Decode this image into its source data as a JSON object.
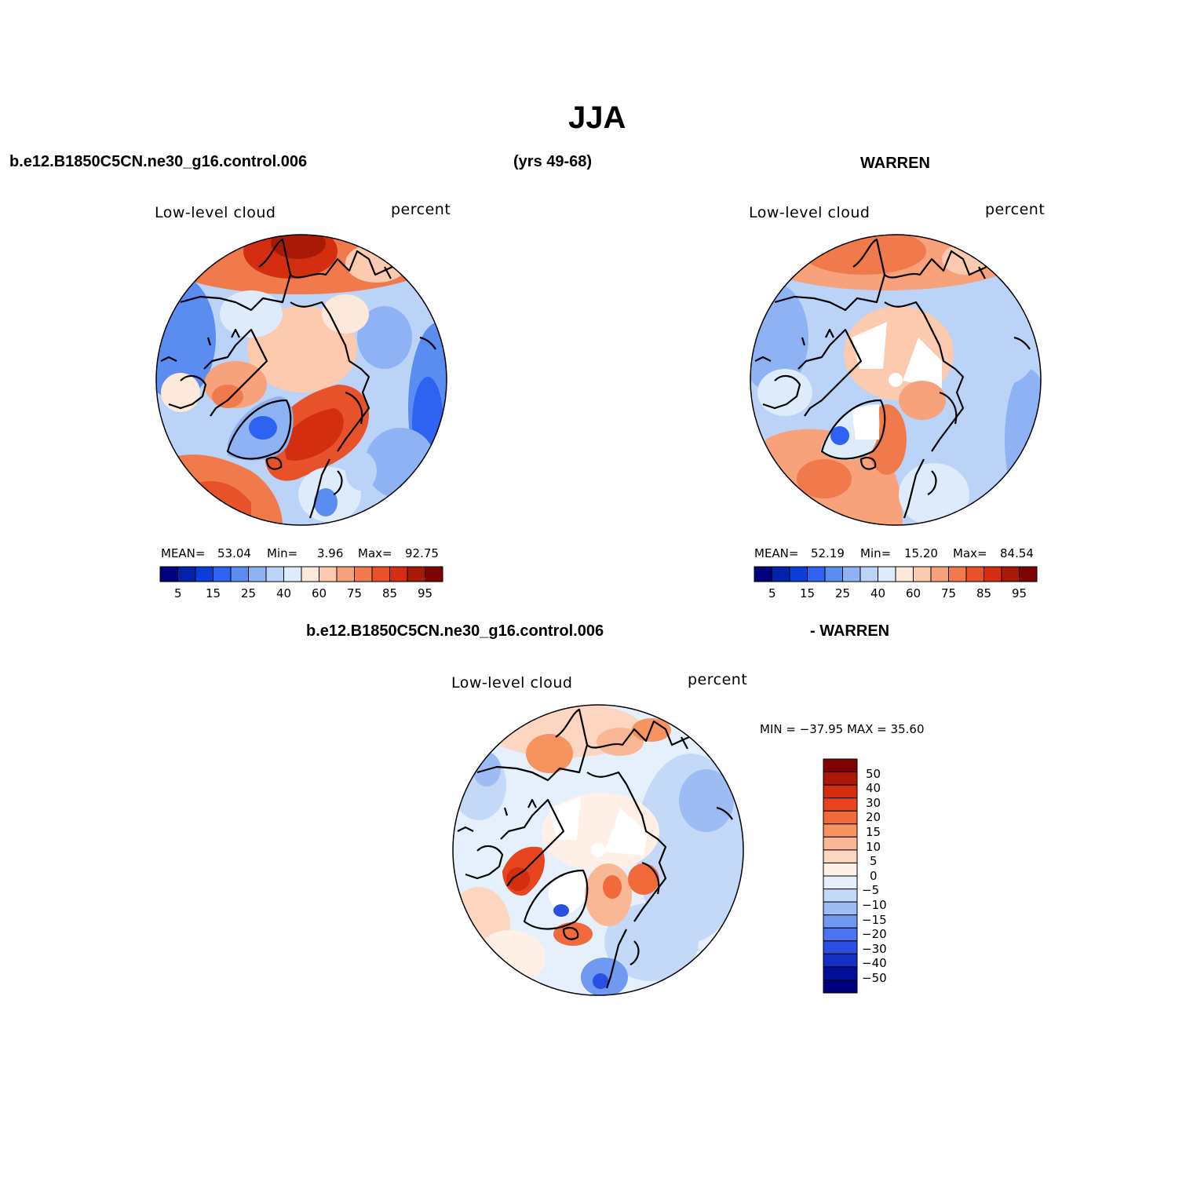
{
  "header": {
    "season": "JJA",
    "case_name": "b.e12.B1850C5CN.ne30_g16.control.006",
    "years": "(yrs 49-68)",
    "obs_name": "WARREN"
  },
  "panels": [
    {
      "id": "model",
      "var_label": "Low-level cloud",
      "units_label": "percent",
      "stats": {
        "mean_label": "MEAN=",
        "mean": "53.04",
        "min_label": "Min=",
        "min": "3.96",
        "max_label": "Max=",
        "max": "92.75"
      }
    },
    {
      "id": "obs",
      "var_label": "Low-level cloud",
      "units_label": "percent",
      "stats": {
        "mean_label": "MEAN=",
        "mean": "52.19",
        "min_label": "Min=",
        "min": "15.20",
        "max_label": "Max=",
        "max": "84.54"
      }
    }
  ],
  "colorbar": {
    "colors": [
      "#00007f",
      "#0022a8",
      "#0a3ed6",
      "#2e62f0",
      "#5b8cf0",
      "#8fb2f5",
      "#bcd3f8",
      "#ddebfb",
      "#fde9dc",
      "#fbcaaf",
      "#f7a27a",
      "#f17a4d",
      "#e8522a",
      "#d32e10",
      "#a81a06",
      "#7e0302"
    ],
    "tick_labels": [
      "5",
      "15",
      "25",
      "40",
      "60",
      "75",
      "85",
      "95"
    ]
  },
  "difference": {
    "subtitle_left": "b.e12.B1850C5CN.ne30_g16.control.006",
    "subtitle_right": "- WARREN",
    "var_label": "Low-level cloud",
    "units_label": "percent",
    "minmax_text": "MIN = −37.95  MAX =   35.60",
    "colorbar": {
      "colors": [
        "#7e0302",
        "#a81a06",
        "#d32e10",
        "#e8441e",
        "#f06a3a",
        "#f7935f",
        "#f9b796",
        "#fcd6c1",
        "#fef0e6",
        "#e6f0fc",
        "#c4d8f8",
        "#9dbcf4",
        "#7199f0",
        "#4b74ee",
        "#2a4fe3",
        "#1330c1",
        "#00109a",
        "#00007f"
      ],
      "labels": [
        "50",
        "40",
        "30",
        "20",
        "15",
        "10",
        "5",
        "0",
        "−5",
        "−10",
        "−15",
        "−20",
        "−30",
        "−40",
        "−50"
      ]
    }
  }
}
